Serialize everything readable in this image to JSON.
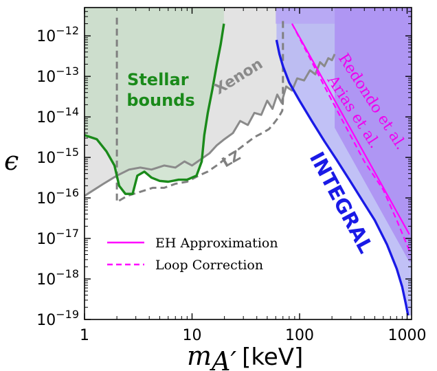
{
  "chart_data": {
    "type": "line",
    "xlabel": "m_{A'}",
    "xlabel_main": "m",
    "xlabel_sub": "A′",
    "xlabel_unit": "[keV]",
    "ylabel": "ϵ",
    "xscale": "log",
    "yscale": "log",
    "xlim": [
      1,
      1100
    ],
    "ylim": [
      1e-19,
      5e-12
    ],
    "x_ticks": [
      1,
      10,
      100,
      1000
    ],
    "x_tick_labels": [
      "1",
      "10",
      "100",
      "1000"
    ],
    "y_ticks": [
      -19,
      -18,
      -17,
      -16,
      -15,
      -14,
      -13,
      -12
    ],
    "y_tick_labels": [
      {
        "base": "10",
        "exp": "−19"
      },
      {
        "base": "10",
        "exp": "−18"
      },
      {
        "base": "10",
        "exp": "−17"
      },
      {
        "base": "10",
        "exp": "−16"
      },
      {
        "base": "10",
        "exp": "−15"
      },
      {
        "base": "10",
        "exp": "−14"
      },
      {
        "base": "10",
        "exp": "−13"
      },
      {
        "base": "10",
        "exp": "−12"
      }
    ],
    "series": [
      {
        "name": "Stellar bounds",
        "style": "solid",
        "color": "#1a8a1a",
        "fill": "#c6dcc6",
        "x": [
          1.0,
          1.3,
          1.6,
          1.9,
          2.1,
          2.4,
          2.8,
          3.1,
          3.6,
          4.2,
          5.0,
          6.0,
          7.5,
          9.0,
          11.0,
          12.3,
          13.0,
          14.0,
          15.5,
          17.0,
          18.5,
          19.8
        ],
        "y": [
          -14.45,
          -14.55,
          -14.85,
          -15.2,
          -15.7,
          -15.9,
          -15.9,
          -15.45,
          -15.35,
          -15.5,
          -15.58,
          -15.6,
          -15.55,
          -15.55,
          -15.45,
          -15.1,
          -14.45,
          -13.9,
          -13.3,
          -12.7,
          -12.2,
          -11.7
        ]
      },
      {
        "name": "Xenon",
        "style": "solid",
        "color": "#8a8a8a",
        "fill": "#e3e3e3",
        "x": [
          1.0,
          1.5,
          2.0,
          2.6,
          3.3,
          4.2,
          5.5,
          7.0,
          8.5,
          10.0,
          12.0,
          14.5,
          17.0,
          20.0,
          24.0,
          28.0,
          33.0,
          38.0,
          44.0,
          50.0,
          56.0,
          62.0,
          68.0,
          75.0,
          85.0,
          95.0,
          110.0,
          125.0,
          140.0,
          155.0,
          170.0,
          185.0,
          200.0,
          212.0
        ],
        "y": [
          -15.95,
          -15.65,
          -15.45,
          -15.3,
          -15.25,
          -15.3,
          -15.2,
          -15.25,
          -15.1,
          -15.2,
          -15.05,
          -14.9,
          -14.7,
          -14.55,
          -14.4,
          -14.1,
          -14.2,
          -13.9,
          -13.95,
          -13.6,
          -13.8,
          -13.45,
          -13.65,
          -13.25,
          -13.35,
          -13.05,
          -13.1,
          -12.85,
          -12.95,
          -12.65,
          -12.75,
          -12.55,
          -12.6,
          -12.45
        ]
      },
      {
        "name": "LZ",
        "style": "dashed",
        "color": "#808080",
        "fill": "none",
        "x": [
          2.0,
          2.0,
          2.5,
          3.3,
          4.3,
          5.5,
          7.0,
          9.0,
          11.5,
          14.0,
          18.0,
          22.0,
          27.0,
          32.0,
          38.0,
          45.0,
          52.0,
          58.0,
          64.0,
          69.0,
          70.0,
          70.0
        ],
        "y": [
          -11.55,
          -16.1,
          -15.95,
          -15.85,
          -15.75,
          -15.75,
          -15.65,
          -15.6,
          -15.45,
          -15.35,
          -15.15,
          -14.95,
          -14.8,
          -14.65,
          -14.5,
          -14.4,
          -14.3,
          -14.15,
          -14.0,
          -13.85,
          -13.6,
          -11.55
        ]
      },
      {
        "name": "INTEGRAL",
        "style": "solid",
        "color": "#1a1ae6",
        "fill": "#b6b6f5",
        "x": [
          61.0,
          65.0,
          70.0,
          80.0,
          100.0,
          130.0,
          170.0,
          220.0,
          290.0,
          380.0,
          500.0,
          650.0,
          800.0,
          900.0,
          980.0,
          1020.0
        ],
        "y": [
          -12.1,
          -12.45,
          -12.75,
          -13.15,
          -13.6,
          -14.1,
          -14.6,
          -15.05,
          -15.55,
          -16.05,
          -16.55,
          -17.15,
          -17.75,
          -18.2,
          -18.65,
          -18.9
        ]
      },
      {
        "name": "Redondo et al.",
        "style": "region",
        "color": "#9f77ef",
        "fill": "#a887f2",
        "x": [
          212.0,
          1100.0
        ],
        "y": [
          -11.7,
          -11.7
        ]
      },
      {
        "name": "Arias et al.",
        "style": "region",
        "color": "#b39ff5",
        "fill": "#b7a6f4",
        "x": [
          60.0,
          212.0
        ],
        "y": [
          -11.7,
          -11.7
        ]
      },
      {
        "name": "EH Approximation",
        "style": "solid",
        "color": "#ff00ff",
        "fill": "none",
        "x": [
          85.0,
          1050.0
        ],
        "y": [
          -11.7,
          -16.9
        ]
      },
      {
        "name": "Loop Correction",
        "style": "dashed",
        "color": "#ff00ff",
        "fill": "none",
        "x": [
          85.0,
          200.0,
          400.0,
          600.0,
          800.0,
          1050.0
        ],
        "y": [
          -11.7,
          -13.6,
          -15.1,
          -15.8,
          -16.55,
          -17.3
        ]
      }
    ],
    "annotations": [
      {
        "text": "Stellar bounds",
        "line1": "Stellar",
        "line2": "bounds",
        "color": "#1a8a1a"
      },
      {
        "text": "Xenon",
        "color": "#8a8a8a"
      },
      {
        "text": "LZ",
        "color": "#808080"
      },
      {
        "text": "INTEGRAL",
        "color": "#1a1ae6"
      },
      {
        "text": "Redondo et al.",
        "color": "#ee00ee"
      },
      {
        "text": "Arias et al.",
        "color": "#ee00ee"
      }
    ],
    "legend": {
      "placement": "lower-left",
      "entries": [
        {
          "label": "EH Approximation",
          "style": "solid",
          "color": "#ff00ff"
        },
        {
          "label": "Loop Correction",
          "style": "dashed",
          "color": "#ff00ff"
        }
      ]
    },
    "grid": false
  }
}
